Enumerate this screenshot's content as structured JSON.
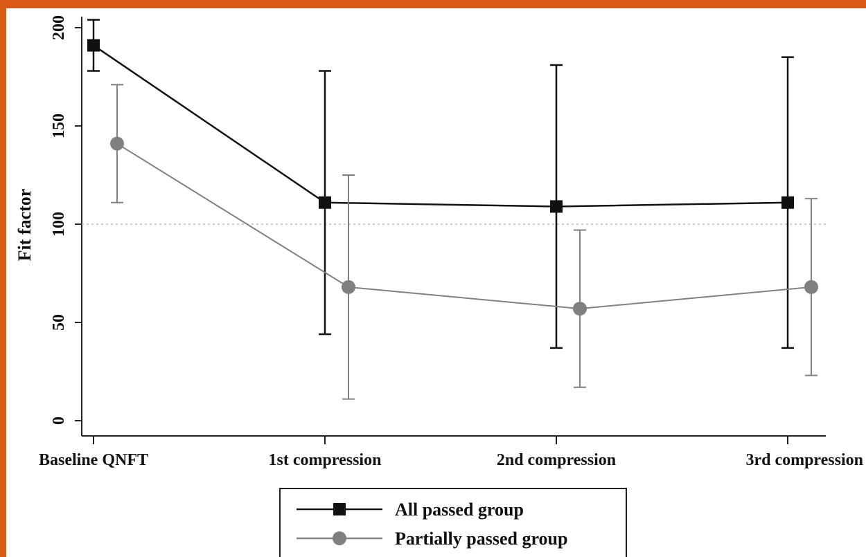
{
  "chart_data": {
    "type": "line",
    "categories": [
      "Baseline QNFT",
      "1st compression",
      "2nd compression",
      "3rd compression"
    ],
    "ylabel": "Fit factor",
    "xlabel": "",
    "ylim": [
      0,
      200
    ],
    "yticks": [
      0,
      50,
      100,
      150,
      200
    ],
    "reference_line": 100,
    "grid": false,
    "legend_position": "bottom-center",
    "series": [
      {
        "name": "All passed group",
        "marker": "square",
        "color": "#111111",
        "values": [
          191,
          111,
          109,
          111
        ],
        "error_low": [
          178,
          44,
          37,
          37
        ],
        "error_high": [
          204,
          178,
          181,
          185
        ]
      },
      {
        "name": "Partially passed group",
        "marker": "circle",
        "color": "#808080",
        "values": [
          141,
          68,
          57,
          68
        ],
        "error_low": [
          111,
          11,
          17,
          23
        ],
        "error_high": [
          171,
          125,
          97,
          113
        ]
      }
    ]
  },
  "colors": {
    "frame": "#d85a14",
    "all_passed": "#111111",
    "partially_passed": "#808080",
    "reference_line": "#bbbbbb"
  }
}
